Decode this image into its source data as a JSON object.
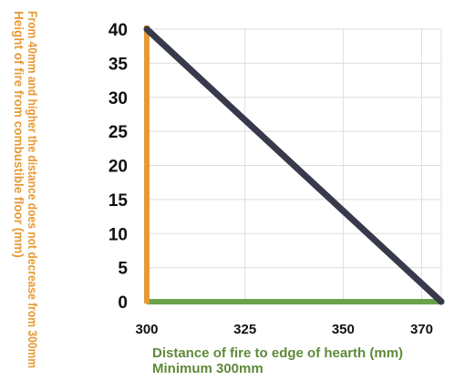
{
  "chart_data": {
    "type": "line",
    "title": "",
    "xlabel": "Distance of fire to edge of hearth (mm)",
    "xlabel_note": "Minimum 300mm",
    "ylabel": "Height of fire from combustible floor (mm)",
    "ylabel_note": "From 40mm and higher the distance does not decrease from 300mm",
    "x_ticks": [
      300,
      325,
      350,
      370
    ],
    "y_ticks": [
      0,
      5,
      10,
      15,
      20,
      25,
      30,
      35,
      40
    ],
    "xlim": [
      300,
      375
    ],
    "ylim": [
      0,
      40
    ],
    "grid": true,
    "series": [
      {
        "x": [
          300,
          375
        ],
        "y": [
          40,
          0
        ]
      }
    ],
    "colors": {
      "line": "#383a4b",
      "y_axis": "#e69a36",
      "x_axis": "#6aa24a",
      "ylabel": "#e69a36",
      "xlabel": "#5f8a3a",
      "grid": "#dddddd",
      "ticks": "#111111"
    }
  }
}
